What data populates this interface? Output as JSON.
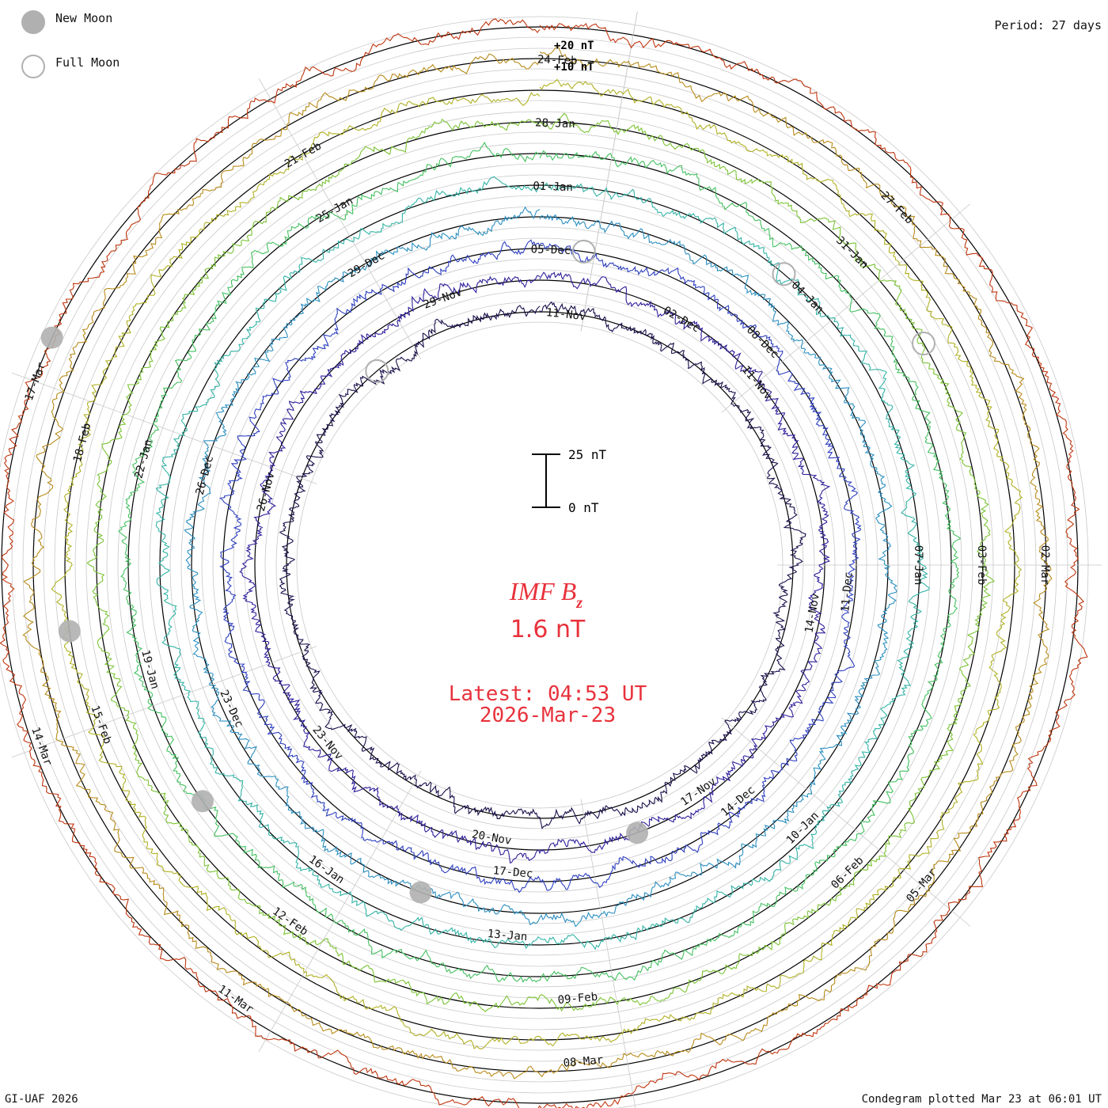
{
  "chart_data": {
    "type": "line",
    "subtype": "polar-condegram",
    "title": "IMF B",
    "title_subscript": "z",
    "current_value": "1.6 nT",
    "latest_time": "Latest: 04:53 UT",
    "latest_date": "2026-Mar-23",
    "period": "Period: 27 days",
    "plotted": "Condegram plotted Mar 23 at 06:01 UT",
    "credit": "GI-UAF 2026",
    "legend": {
      "new_moon": "New Moon",
      "full_moon": "Full Moon"
    },
    "ring_scale_labels": [
      "+20 nT",
      "+10 nT"
    ],
    "scale_bar": {
      "top": "25 nT",
      "bottom": "0 nT",
      "nT_span": 25
    },
    "rotations": [
      {
        "color": "#1a0f4a",
        "start_deg": -90,
        "labels": [
          [
            "11-Nov",
            -84
          ]
        ]
      },
      {
        "color": "#2e1f9a",
        "start_deg": -90,
        "labels": [
          [
            "11-Nov",
            -40
          ],
          [
            "14-Nov",
            10
          ],
          [
            "17-Nov",
            55
          ],
          [
            "20-Nov",
            100
          ],
          [
            "23-Nov",
            140
          ],
          [
            "26-Nov",
            195
          ],
          [
            "29-Nov",
            250
          ],
          [
            "02-Dec",
            300
          ]
        ]
      },
      {
        "color": "#2d3fbf",
        "start_deg": -90,
        "labels": [
          [
            "05-Dec",
            -88
          ],
          [
            "08-Dec",
            -45
          ],
          [
            "11-Dec",
            5
          ],
          [
            "14-Dec",
            50
          ],
          [
            "17-Dec",
            95
          ]
        ]
      },
      {
        "color": "#2b8fc0",
        "start_deg": -90,
        "labels": [
          [
            "23-Dec",
            155
          ],
          [
            "26-Dec",
            195
          ],
          [
            "29-Dec",
            240
          ]
        ]
      },
      {
        "color": "#33b3a6",
        "start_deg": -90,
        "labels": [
          [
            "01-Jan",
            -88
          ],
          [
            "04-Jan",
            -45
          ],
          [
            "07-Jan",
            0
          ],
          [
            "10-Jan",
            45
          ],
          [
            "13-Jan",
            95
          ],
          [
            "16-Jan",
            125
          ]
        ]
      },
      {
        "color": "#44c060",
        "start_deg": -90,
        "labels": [
          [
            "19-Jan",
            165
          ],
          [
            "22-Jan",
            195
          ],
          [
            "25-Jan",
            240
          ]
        ]
      },
      {
        "color": "#7cc436",
        "start_deg": -90,
        "labels": [
          [
            "28-Jan",
            -88
          ],
          [
            "31-Jan",
            -45
          ],
          [
            "03-Feb",
            0
          ],
          [
            "06-Feb",
            45
          ],
          [
            "09-Feb",
            85
          ],
          [
            "12-Feb",
            125
          ]
        ]
      },
      {
        "color": "#b0b124",
        "start_deg": -90,
        "labels": [
          [
            "15-Feb",
            160
          ],
          [
            "18-Feb",
            195
          ],
          [
            "21-Feb",
            240
          ]
        ]
      },
      {
        "color": "#b88b1a",
        "start_deg": -90,
        "labels": [
          [
            "24-Feb",
            -88
          ],
          [
            "27-Feb",
            -45
          ],
          [
            "02-Mar",
            0
          ],
          [
            "05-Mar",
            40
          ],
          [
            "08-Mar",
            85
          ]
        ]
      },
      {
        "color": "#c0360f",
        "start_deg": -90,
        "labels": [
          [
            "11-Mar",
            125
          ],
          [
            "14-Mar",
            160
          ],
          [
            "17-Mar",
            200
          ]
        ]
      }
    ],
    "moon_markers": [
      {
        "phase": "new",
        "angle_deg": 70,
        "ring": 1
      },
      {
        "phase": "full",
        "angle_deg": -130,
        "ring": 0
      },
      {
        "phase": "full",
        "angle_deg": -82,
        "ring": 2
      },
      {
        "phase": "new",
        "angle_deg": 110,
        "ring": 3
      },
      {
        "phase": "full",
        "angle_deg": -50,
        "ring": 4
      },
      {
        "phase": "new",
        "angle_deg": 145,
        "ring": 5
      },
      {
        "phase": "full",
        "angle_deg": -30,
        "ring": 6
      },
      {
        "phase": "new",
        "angle_deg": 172,
        "ring": 7
      },
      {
        "phase": "new",
        "angle_deg": 205,
        "ring": 9
      }
    ],
    "radial_spokes_deg": [
      -80,
      -40,
      0,
      40,
      80,
      120,
      160,
      200,
      240,
      280
    ]
  }
}
